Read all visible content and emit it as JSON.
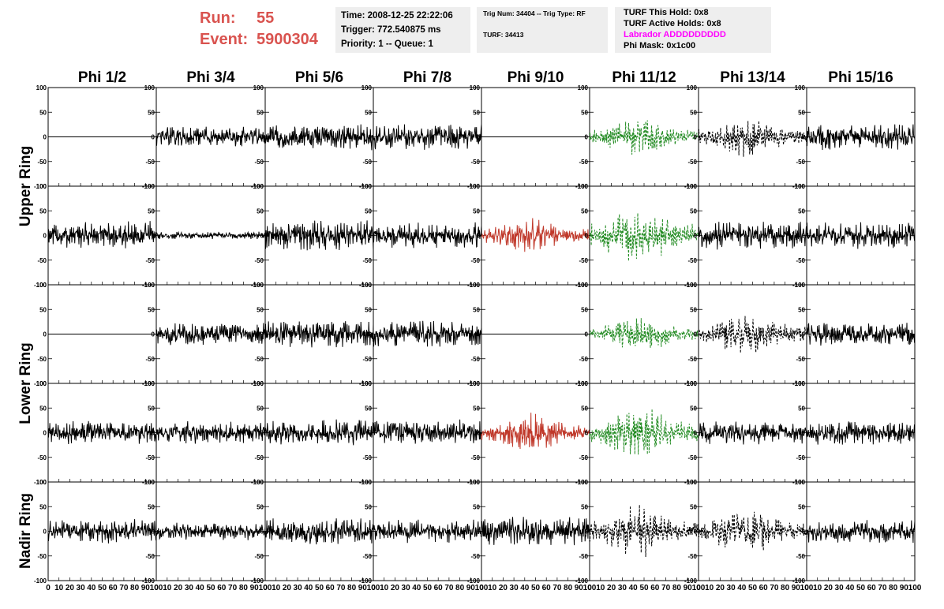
{
  "header": {
    "run_label": "Run:",
    "run_value": "55",
    "event_label": "Event:",
    "event_value": "5900304",
    "time": "Time: 2008-12-25 22:22:06",
    "trigger": "Trigger: 772.540875 ms",
    "priority": "Priority: 1 -- Queue: 1",
    "trig_num": "Trig Num: 34404 -- Trig Type: RF",
    "turf": "TURF: 34413",
    "turf_this_hold": "TURF This Hold: 0x8",
    "turf_active_holds": "TURF Active Holds: 0x8",
    "labrador": "Labrador ADDDDDDDDD",
    "phi_mask": "Phi Mask: 0x1c00"
  },
  "colors": {
    "header_red": "#d9534f",
    "trace_black": "#000000",
    "trace_red": "#c0392b",
    "trace_green": "#228b22",
    "magenta": "#ff00ff"
  },
  "chart_data": {
    "type": "line",
    "phi_titles": [
      "Phi 1/2",
      "Phi 3/4",
      "Phi 5/6",
      "Phi 7/8",
      "Phi 9/10",
      "Phi 11/12",
      "Phi 13/14",
      "Phi 15/16"
    ],
    "ring_labels": [
      "Upper Ring",
      "Lower Ring",
      "Nadir Ring"
    ],
    "ylim": [
      -100,
      100
    ],
    "xlim": [
      0,
      100
    ],
    "y_ticks": [
      "100",
      "50",
      "0",
      "-50",
      "-100"
    ],
    "x_ticks": [
      "0",
      "10",
      "20",
      "30",
      "40",
      "50",
      "60",
      "70",
      "80",
      "90",
      "100"
    ],
    "panels": [
      [
        {
          "style": "flat"
        },
        {
          "style": "noise",
          "amp": 22,
          "color": "black"
        },
        {
          "style": "noise",
          "amp": 28,
          "color": "black"
        },
        {
          "style": "noise",
          "amp": 28,
          "color": "black"
        },
        {
          "style": "flat"
        },
        {
          "style": "burst",
          "amp": 40,
          "color": "green",
          "dash": true
        },
        {
          "style": "burst",
          "amp": 42,
          "color": "black",
          "dash": true
        },
        {
          "style": "noise",
          "amp": 28,
          "color": "black"
        }
      ],
      [
        {
          "style": "noise",
          "amp": 30,
          "color": "black"
        },
        {
          "style": "noise",
          "amp": 8,
          "color": "black"
        },
        {
          "style": "noise",
          "amp": 32,
          "color": "black"
        },
        {
          "style": "noise",
          "amp": 28,
          "color": "black"
        },
        {
          "style": "burst",
          "amp": 38,
          "color": "red"
        },
        {
          "style": "burst",
          "amp": 70,
          "color": "green",
          "dash": true
        },
        {
          "style": "noise",
          "amp": 30,
          "color": "black"
        },
        {
          "style": "noise",
          "amp": 28,
          "color": "black"
        }
      ],
      [
        {
          "style": "flat"
        },
        {
          "style": "noise",
          "amp": 24,
          "color": "black"
        },
        {
          "style": "noise",
          "amp": 28,
          "color": "black"
        },
        {
          "style": "noise",
          "amp": 28,
          "color": "black"
        },
        {
          "style": "flat"
        },
        {
          "style": "burst",
          "amp": 40,
          "color": "green",
          "dash": true
        },
        {
          "style": "burst",
          "amp": 50,
          "color": "black",
          "dash": true
        },
        {
          "style": "noise",
          "amp": 25,
          "color": "black"
        }
      ],
      [
        {
          "style": "noise",
          "amp": 25,
          "color": "black"
        },
        {
          "style": "noise",
          "amp": 25,
          "color": "black"
        },
        {
          "style": "noise",
          "amp": 28,
          "color": "black"
        },
        {
          "style": "noise",
          "amp": 28,
          "color": "black"
        },
        {
          "style": "burst",
          "amp": 42,
          "color": "red"
        },
        {
          "style": "burst",
          "amp": 58,
          "color": "green",
          "dash": true
        },
        {
          "style": "noise",
          "amp": 25,
          "color": "black"
        },
        {
          "style": "noise",
          "amp": 25,
          "color": "black"
        }
      ],
      [
        {
          "style": "noise",
          "amp": 25,
          "color": "black"
        },
        {
          "style": "noise",
          "amp": 18,
          "color": "black"
        },
        {
          "style": "noise",
          "amp": 30,
          "color": "black"
        },
        {
          "style": "noise",
          "amp": 25,
          "color": "black"
        },
        {
          "style": "noise",
          "amp": 32,
          "color": "black"
        },
        {
          "style": "burst",
          "amp": 55,
          "color": "black",
          "dash": true
        },
        {
          "style": "burst",
          "amp": 50,
          "color": "black",
          "dash": true
        },
        {
          "style": "noise",
          "amp": 25,
          "color": "black"
        }
      ]
    ]
  }
}
